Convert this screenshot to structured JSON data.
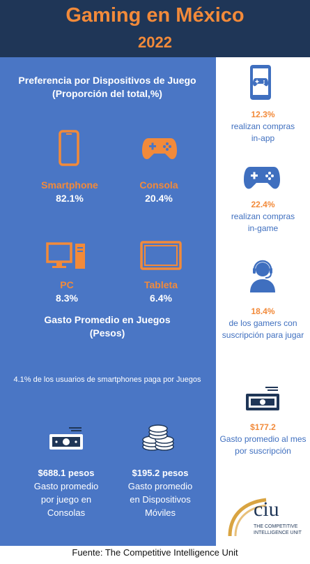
{
  "header": {
    "title": "Gaming en México",
    "year": "2022"
  },
  "preferencia": {
    "title_line1": "Preferencia por Dispositivos de Juego",
    "title_line2": "(Proporción del total,%)",
    "devices": [
      {
        "label": "Smartphone",
        "value": "82.1%",
        "icon": "smartphone-icon"
      },
      {
        "label": "Consola",
        "value": "20.4%",
        "icon": "gamepad-icon"
      },
      {
        "label": "PC",
        "value": "8.3%",
        "icon": "desktop-pc-icon"
      },
      {
        "label": "Tableta",
        "value": "6.4%",
        "icon": "tablet-icon"
      }
    ]
  },
  "gasto": {
    "title_line1": "Gasto Promedio en Juegos",
    "title_line2": "(Pesos)",
    "note": "4.1% de los usuarios de smartphones paga por Juegos",
    "items": [
      {
        "value": "$688.1 pesos",
        "line1": "Gasto promedio",
        "line2": "por juego en",
        "line3": "Consolas",
        "icon": "banknote-icon"
      },
      {
        "value": "$195.2 pesos",
        "line1": "Gasto promedio",
        "line2": "en Dispositivos",
        "line3": "Móviles",
        "icon": "coins-icon"
      }
    ]
  },
  "sidebar": [
    {
      "value": "12.3%",
      "line1": "realizan compras",
      "line2": "in-app",
      "icon": "phone-gamepad-icon"
    },
    {
      "value": "22.4%",
      "line1": "realizan compras",
      "line2": "in-game",
      "icon": "gamepad-icon"
    },
    {
      "value": "18.4%",
      "line1": "de los gamers con",
      "line2": "suscripción para jugar",
      "icon": "gamer-headset-icon"
    },
    {
      "value": "$177.2",
      "line1": "Gasto promedio al mes",
      "line2": "por suscripción",
      "icon": "banknote-icon"
    }
  ],
  "logo": {
    "text": "ciu",
    "line1": "THE COMPETITIVE",
    "line2": "INTELLIGENCE UNIT"
  },
  "footer": "Fuente: The Competitive Intelligence Unit",
  "colors": {
    "navy": "#1f3657",
    "blue": "#4a76c5",
    "orange": "#f28a3a"
  }
}
